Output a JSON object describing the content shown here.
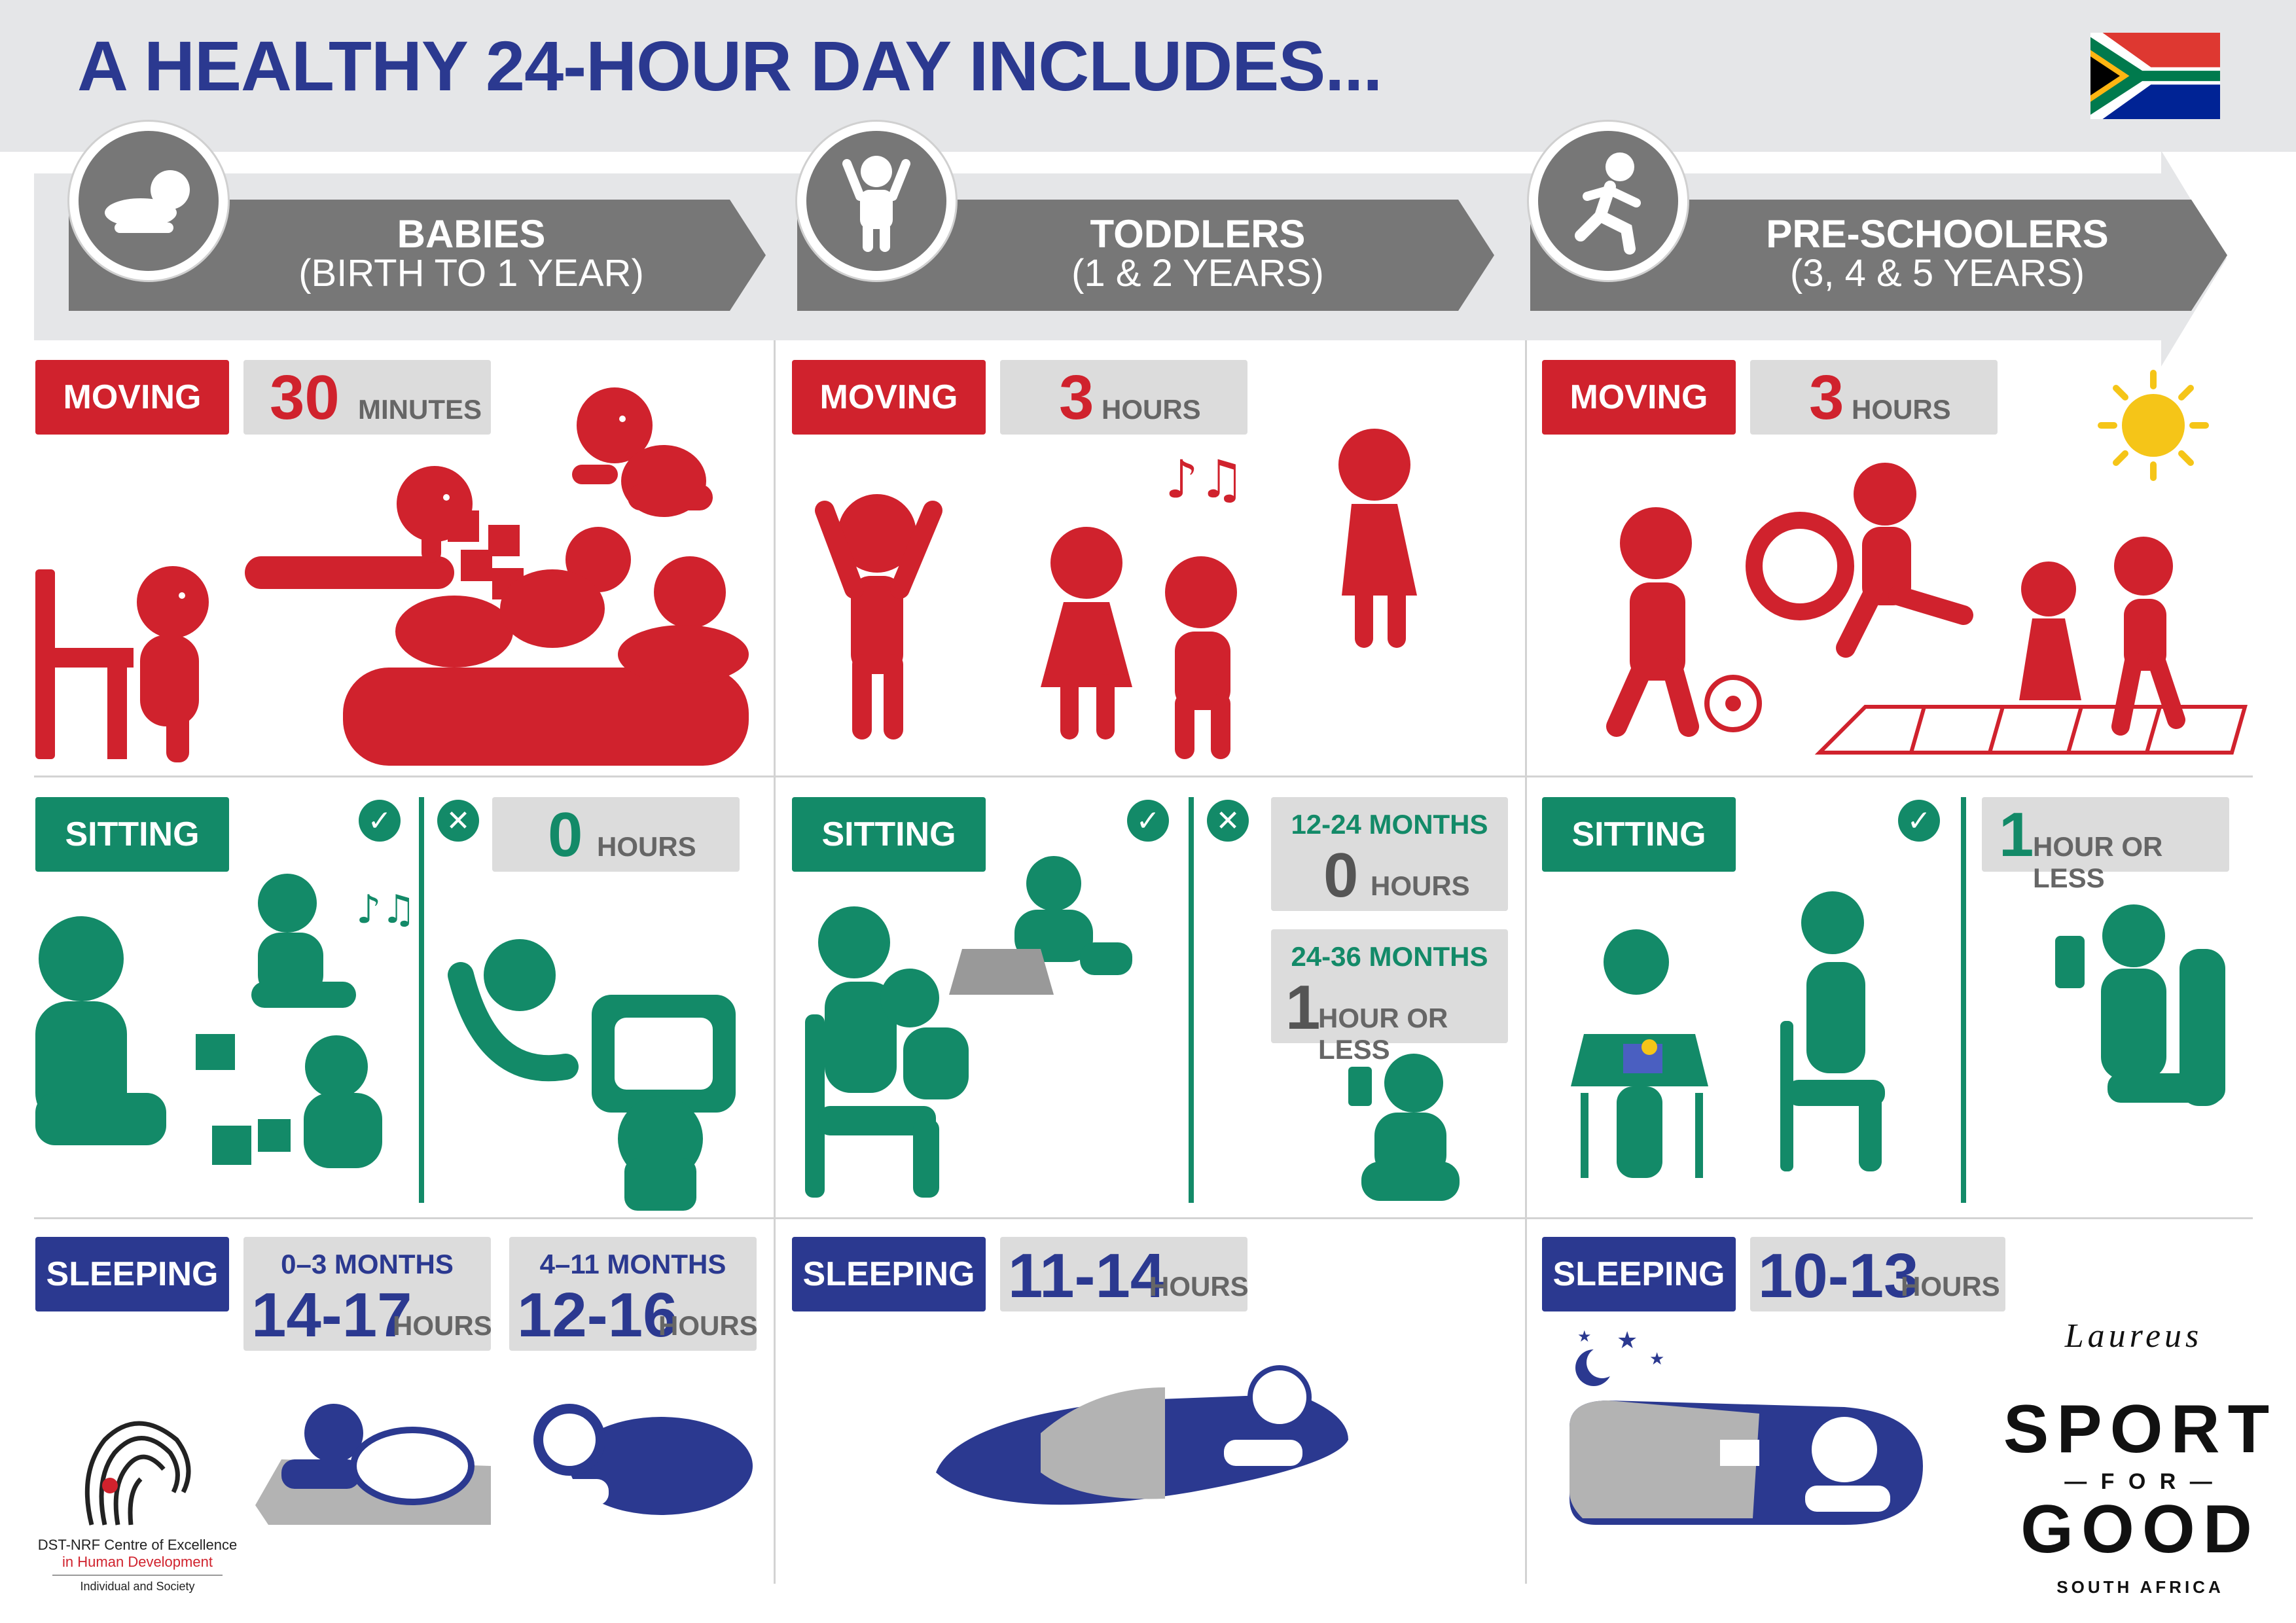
{
  "title": "A HEALTHY 24-HOUR DAY INCLUDES...",
  "groups": [
    {
      "name": "BABIES",
      "range": "(BIRTH TO 1 YEAR)",
      "icon": "crawling-baby-icon"
    },
    {
      "name": "TODDLERS",
      "range": "(1 & 2 YEARS)",
      "icon": "toddler-icon"
    },
    {
      "name": "PRE-SCHOOLERS",
      "range": "(3, 4 & 5 YEARS)",
      "icon": "running-child-icon"
    }
  ],
  "labels": {
    "moving": "MOVING",
    "sitting": "SITTING",
    "sleeping": "SLEEPING"
  },
  "babies": {
    "moving": {
      "value": "30",
      "unit": "MINUTES"
    },
    "sitting": {
      "value": "0",
      "unit": "HOURS"
    },
    "sleeping": [
      {
        "age": "0–3 MONTHS",
        "value": "14-17",
        "unit": "HOURS"
      },
      {
        "age": "4–11 MONTHS",
        "value": "12-16",
        "unit": "HOURS"
      }
    ]
  },
  "toddlers": {
    "moving": {
      "value": "3",
      "unit": "HOURS"
    },
    "sitting": [
      {
        "age": "12-24 MONTHS",
        "value": "0",
        "unit": "HOURS"
      },
      {
        "age": "24-36 MONTHS",
        "value": "1",
        "unit": "HOUR OR LESS"
      }
    ],
    "sleeping": {
      "value": "11-14",
      "unit": "HOURS"
    }
  },
  "preschoolers": {
    "moving": {
      "value": "3",
      "unit": "HOURS"
    },
    "sitting": {
      "value": "1",
      "unit": "HOUR OR LESS"
    },
    "sleeping": {
      "value": "10-13",
      "unit": "HOURS"
    }
  },
  "symbols": {
    "check": "✓",
    "cross": "✕",
    "notes": "♪♫"
  },
  "logos": {
    "dst_line1": "DST-NRF Centre of Excellence",
    "dst_line2": "in Human Development",
    "dst_line3": "Individual and Society",
    "laureus": "Laureus",
    "sport": "SPORT",
    "for": "— F O R —",
    "good": "GOOD",
    "sa": "SOUTH AFRICA"
  },
  "colors": {
    "red": "#d0222d",
    "green": "#138a68",
    "blue": "#2b3990",
    "grey": "#777777",
    "light_grey": "#dcdcdc"
  }
}
